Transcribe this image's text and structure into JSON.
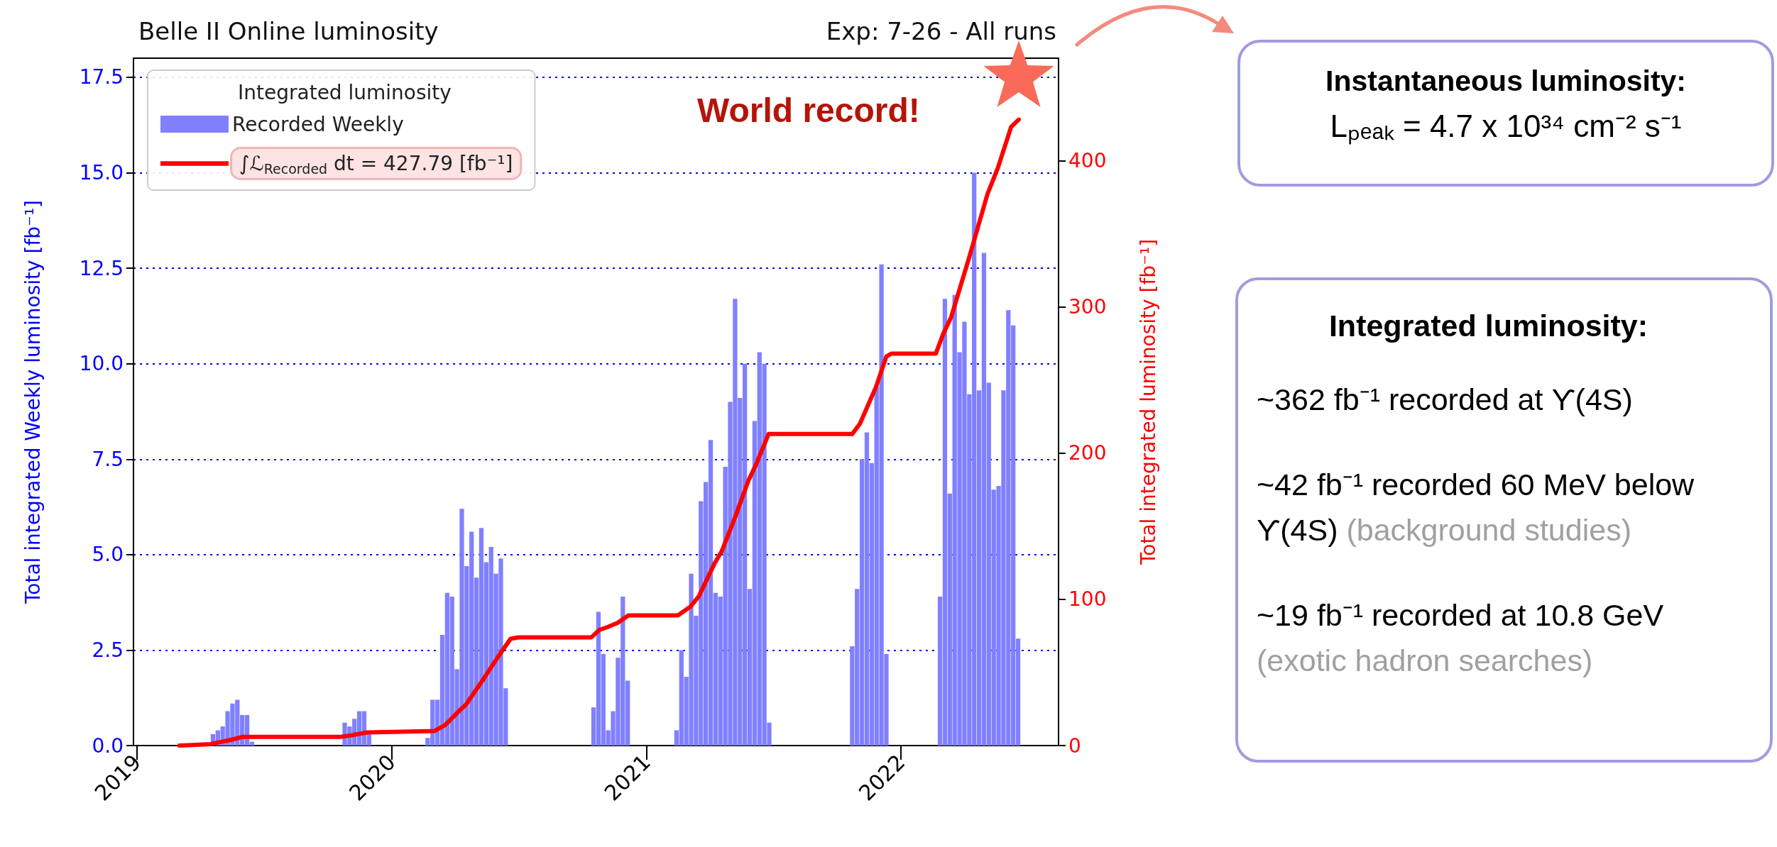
{
  "chart_data": {
    "type": "bar",
    "title": "Belle II Online luminosity",
    "subtitle": "Exp: 7-26 - All runs",
    "ylabel": "Total integrated Weekly luminosity [fb⁻¹]",
    "y2label": "Total integrated luminosity [fb⁻¹]",
    "legend_title": "Integrated luminosity",
    "annotations": [
      "World record!",
      "Instantaneous luminosity:",
      "Lₚₑₐₖ = 4.7 x 10³⁴ cm⁻² s⁻¹",
      "Integrated luminosity:",
      "~362 fb⁻¹ recorded at ϒ(4S)",
      "~42 fb⁻¹ recorded 60 MeV below ϒ(4S)",
      "(background studies)",
      "~19 fb⁻¹ recorded at 10.8 GeV",
      "(exotic hadron searches)"
    ],
    "series": [
      {
        "name": "Recorded Weekly",
        "color": "#8080ff",
        "x": [
          "2019-04-20",
          "2019-04-27",
          "2019-05-04",
          "2019-05-11",
          "2019-05-18",
          "2019-05-25",
          "2019-06-01",
          "2019-06-08",
          "2019-06-15",
          "2019-10-26",
          "2019-11-02",
          "2019-11-09",
          "2019-11-16",
          "2019-11-23",
          "2019-11-30",
          "2020-02-22",
          "2020-02-29",
          "2020-03-07",
          "2020-03-14",
          "2020-03-21",
          "2020-03-28",
          "2020-04-04",
          "2020-04-11",
          "2020-04-18",
          "2020-04-25",
          "2020-05-02",
          "2020-05-09",
          "2020-05-16",
          "2020-05-23",
          "2020-05-30",
          "2020-06-06",
          "2020-06-13",
          "2020-10-17",
          "2020-10-24",
          "2020-10-31",
          "2020-11-07",
          "2020-11-14",
          "2020-11-21",
          "2020-11-28",
          "2020-12-05",
          "2021-02-13",
          "2021-02-20",
          "2021-02-27",
          "2021-03-06",
          "2021-03-13",
          "2021-03-20",
          "2021-03-27",
          "2021-04-03",
          "2021-04-10",
          "2021-04-17",
          "2021-04-24",
          "2021-05-01",
          "2021-05-08",
          "2021-05-15",
          "2021-05-22",
          "2021-05-29",
          "2021-06-05",
          "2021-06-12",
          "2021-06-19",
          "2021-06-26",
          "2021-10-23",
          "2021-10-30",
          "2021-11-06",
          "2021-11-13",
          "2021-11-20",
          "2021-11-27",
          "2021-12-04",
          "2021-12-11",
          "2022-02-26",
          "2022-03-05",
          "2022-03-12",
          "2022-03-19",
          "2022-03-26",
          "2022-04-02",
          "2022-04-09",
          "2022-04-16",
          "2022-04-23",
          "2022-04-30",
          "2022-05-07",
          "2022-05-14",
          "2022-05-21",
          "2022-05-28",
          "2022-06-04",
          "2022-06-11",
          "2022-06-18"
        ],
        "values": [
          0.3,
          0.4,
          0.5,
          0.9,
          1.1,
          1.2,
          0.8,
          0.8,
          0.1,
          0.6,
          0.5,
          0.7,
          0.9,
          0.9,
          0.3,
          0.2,
          1.2,
          1.2,
          2.9,
          4.0,
          3.9,
          2.0,
          6.2,
          4.7,
          5.6,
          4.4,
          5.7,
          4.8,
          5.2,
          4.5,
          4.9,
          1.5,
          1.0,
          3.5,
          2.4,
          0.4,
          0.9,
          2.3,
          3.9,
          1.7,
          0.4,
          2.5,
          1.8,
          4.5,
          3.4,
          6.4,
          6.9,
          8.0,
          4.0,
          3.9,
          7.3,
          9.0,
          11.7,
          9.1,
          10.0,
          4.1,
          8.5,
          10.3,
          10.0,
          0.6,
          2.6,
          4.1,
          7.5,
          8.2,
          7.4,
          9.4,
          12.6,
          2.4,
          3.9,
          11.7,
          6.6,
          11.8,
          10.3,
          11.1,
          9.2,
          15.0,
          9.3,
          12.9,
          9.5,
          6.7,
          6.8,
          9.3,
          11.4,
          11.0,
          2.8
        ]
      },
      {
        "name": "∫ℒ$_{Recorded}$ dt = 427.79 [fb⁻¹]",
        "type": "line",
        "axis": "y2",
        "color": "#ff0000",
        "x": [
          "2019-03-03",
          "2019-04-17",
          "2019-05-17",
          "2019-06-02",
          "2019-10-21",
          "2019-11-05",
          "2019-11-27",
          "2020-03-03",
          "2020-03-18",
          "2020-04-10",
          "2020-04-17",
          "2020-05-10",
          "2020-06-01",
          "2020-06-20",
          "2020-07-01",
          "2020-10-14",
          "2020-10-25",
          "2020-11-06",
          "2020-11-21",
          "2020-12-06",
          "2021-02-15",
          "2021-03-05",
          "2021-03-17",
          "2021-04-08",
          "2021-04-19",
          "2021-05-08",
          "2021-05-27",
          "2021-06-07",
          "2021-06-25",
          "2021-10-23",
          "2021-11-03",
          "2021-11-26",
          "2021-12-11",
          "2021-12-18",
          "2022-02-20",
          "2022-03-03",
          "2022-03-14",
          "2022-04-09",
          "2022-05-05",
          "2022-05-20",
          "2022-06-08",
          "2022-06-19"
        ],
        "values": [
          0,
          1,
          4,
          6,
          6,
          7,
          9,
          10,
          14,
          25,
          28,
          44,
          60,
          73,
          74,
          74,
          79,
          81,
          84,
          89,
          89,
          95,
          102,
          124,
          133,
          156,
          181,
          192,
          213,
          213,
          220,
          245,
          266,
          268,
          268,
          282,
          293,
          334,
          377,
          395,
          423,
          428
        ]
      }
    ],
    "xlim": [
      "2018-12-27",
      "2022-08-15"
    ],
    "xticks": [
      {
        "value": "2019-01-01",
        "label": "2019"
      },
      {
        "value": "2020-01-01",
        "label": "2020"
      },
      {
        "value": "2021-01-01",
        "label": "2021"
      },
      {
        "value": "2022-01-01",
        "label": "2022"
      }
    ],
    "ylim": [
      0,
      18
    ],
    "yticks": [
      {
        "value": 0,
        "label": "0.0"
      },
      2.5,
      {
        "value": 5,
        "label": "5.0"
      },
      7.5,
      {
        "value": 10,
        "label": "10.0"
      },
      12.5,
      {
        "value": 15,
        "label": "15.0"
      },
      17.5
    ],
    "y2lim": [
      0,
      470
    ],
    "y2ticks": [
      0,
      100,
      200,
      300,
      400
    ],
    "grid": "y",
    "legend": "top left",
    "marker": "none",
    "line_style": "solid"
  }
}
